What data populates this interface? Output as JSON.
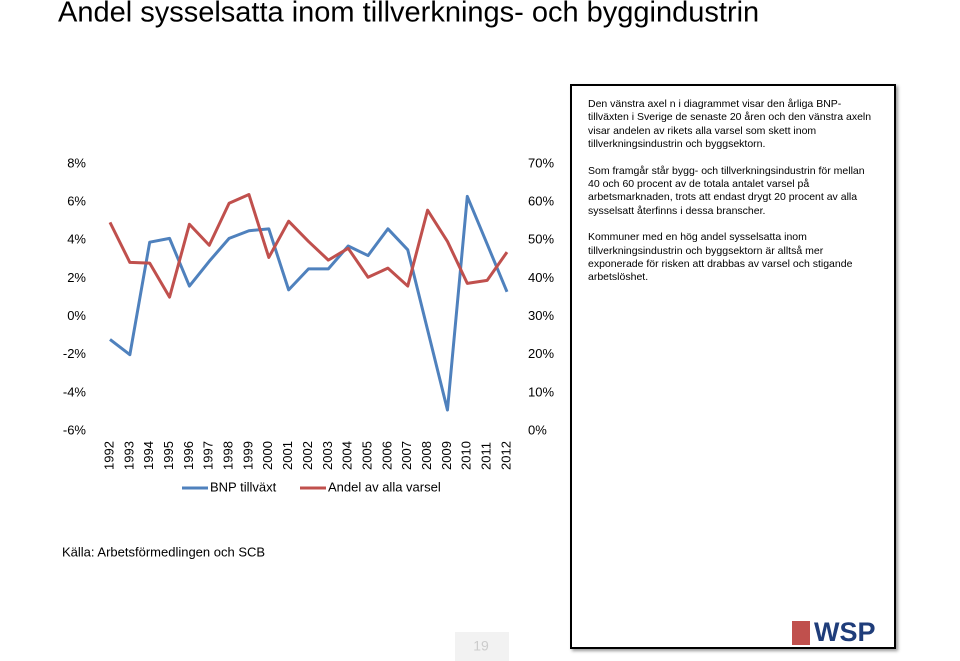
{
  "title": "Andel sysselsatta inom tillverknings- och byggindustrin",
  "chart_data": {
    "type": "line",
    "categories": [
      "1992",
      "1993",
      "1994",
      "1995",
      "1996",
      "1997",
      "1998",
      "1999",
      "2000",
      "2001",
      "2002",
      "2003",
      "2004",
      "2005",
      "2006",
      "2007",
      "2008",
      "2009",
      "2010",
      "2011",
      "2012"
    ],
    "series": [
      {
        "name": "BNP tillväxt",
        "color": "#4f81bd",
        "values": [
          -1.2,
          -2.0,
          3.9,
          4.1,
          1.6,
          2.9,
          4.1,
          4.5,
          4.6,
          1.4,
          2.5,
          2.5,
          3.7,
          3.2,
          4.6,
          3.5,
          -0.7,
          -4.9,
          6.3,
          3.8,
          1.3
        ]
      },
      {
        "name": "Andel av alla varsel",
        "color": "#c0504d",
        "axis": "y2",
        "values": [
          54.7,
          44.2,
          44.0,
          35.1,
          54.2,
          48.7,
          59.7,
          62.0,
          45.5,
          55.0,
          49.7,
          44.8,
          47.9,
          40.3,
          42.7,
          38.0,
          57.9,
          49.7,
          38.7,
          39.5,
          46.9
        ]
      }
    ],
    "ylim": [
      -6,
      8
    ],
    "yticks": [
      {
        "value": 8,
        "label": "8%"
      },
      {
        "value": 6,
        "label": "6%"
      },
      {
        "value": 4,
        "label": "4%"
      },
      {
        "value": 2,
        "label": "2%"
      },
      {
        "value": 0,
        "label": "0%"
      },
      {
        "value": -2,
        "label": "-2%"
      },
      {
        "value": -4,
        "label": "-4%"
      },
      {
        "value": -6,
        "label": "-6%"
      }
    ],
    "y2lim": [
      0,
      70
    ],
    "y2ticks": [
      {
        "value": 70,
        "label": "70%"
      },
      {
        "value": 60,
        "label": "60%"
      },
      {
        "value": 50,
        "label": "50%"
      },
      {
        "value": 40,
        "label": "40%"
      },
      {
        "value": 30,
        "label": "30%"
      },
      {
        "value": 20,
        "label": "20%"
      },
      {
        "value": 10,
        "label": "10%"
      },
      {
        "value": 0,
        "label": "0%"
      }
    ],
    "grid": false
  },
  "textbox": [
    "Den vänstra axel n i diagrammet visar den årliga BNP-tillväxten i Sverige de senaste 20 åren och den vänstra axeln visar andelen av rikets alla varsel som skett inom tillverkningsindustrin och byggsektorn.",
    "Som framgår står bygg- och tillverkningsindustrin för mellan 40 och 60 procent av de totala antalet varsel på arbetsmarknaden, trots att endast drygt 20 procent av alla sysselsatt återfinns  i dessa branscher.",
    "Kommuner med en hög andel sysselsatta inom tillverkningsindustrin och byggsektorn är alltså mer exponerade för risken att drabbas av varsel  och stigande arbetslöshet."
  ],
  "source": "Källa: Arbetsförmedlingen och SCB",
  "page_number": "19",
  "logo": "WSP"
}
